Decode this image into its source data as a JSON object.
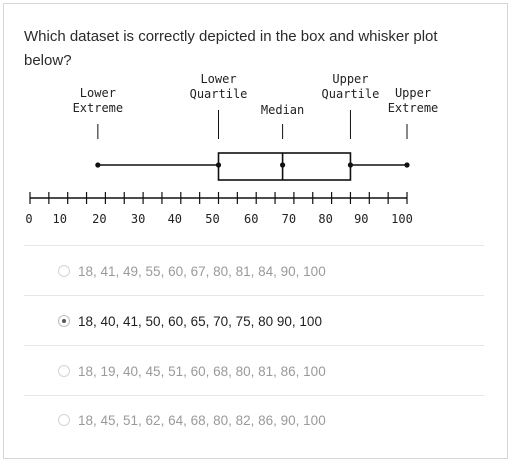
{
  "question": {
    "text": "Which dataset is correctly depicted in the box and whisker plot below?"
  },
  "chart_data": {
    "type": "boxplot",
    "labels": {
      "lower_extreme": [
        "Lower",
        "Extreme"
      ],
      "lower_quartile": [
        "Lower",
        "Quartile"
      ],
      "median": [
        "Median"
      ],
      "upper_quartile": [
        "Upper",
        "Quartile"
      ],
      "upper_extreme": [
        "Upper",
        "Extreme"
      ]
    },
    "values": {
      "lower_extreme": 18,
      "lower_quartile": 50,
      "median": 67,
      "upper_quartile": 85,
      "upper_extreme": 100
    },
    "axis": {
      "min": 0,
      "max": 100,
      "minor_step": 5,
      "tick_labels": [
        "0",
        "10",
        "20",
        "30",
        "40",
        "50",
        "60",
        "70",
        "80",
        "90",
        "100"
      ]
    }
  },
  "options": [
    {
      "text": "18, 41, 49, 55, 60, 67, 80, 81, 84, 90, 100",
      "selected": false
    },
    {
      "text": "18, 40, 41, 50, 60, 65, 70, 75, 80 90, 100",
      "selected": true
    },
    {
      "text": "18, 19, 40, 45, 51, 60, 68, 80, 81, 86, 100",
      "selected": false
    },
    {
      "text": "18, 45, 51, 62, 64, 68, 80, 82, 86, 90, 100",
      "selected": false
    }
  ]
}
